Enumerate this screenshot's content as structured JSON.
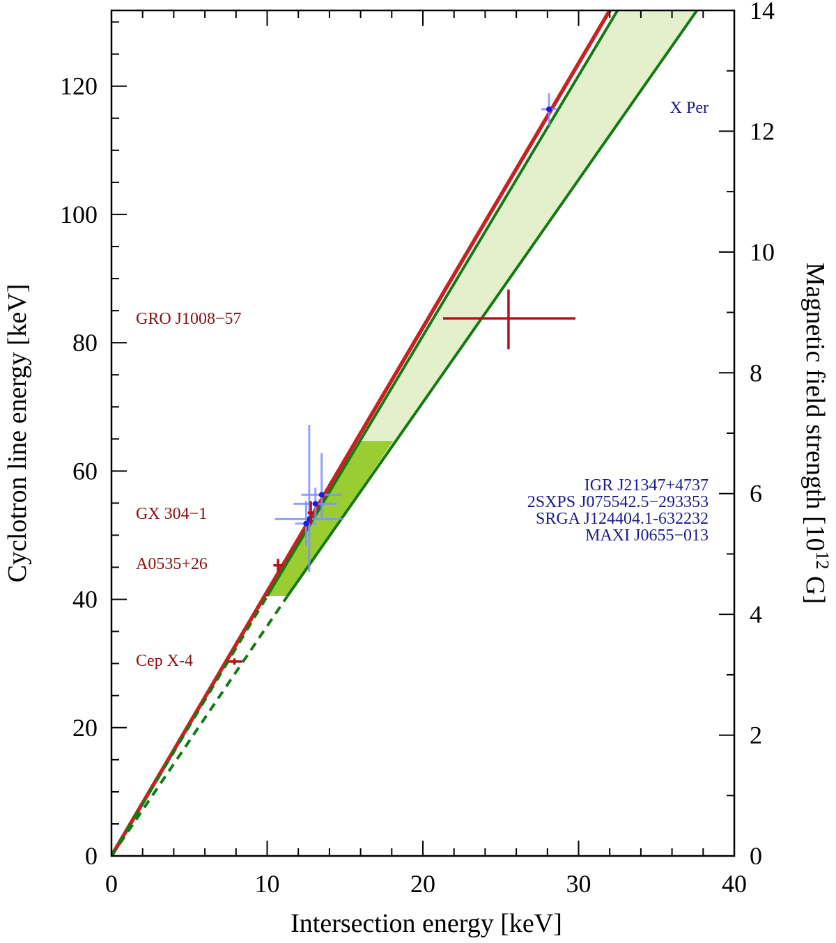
{
  "colors": {
    "red_line": "#cc1f1f",
    "red_points": "#b01414",
    "dark_green": "#127a12",
    "light_green_fill": "#e4f0cc",
    "mid_green_fill": "#9acd32",
    "blue_points": "#1a1adb",
    "blue_errorbars": "#7f8fff",
    "red_label": "#8b1010",
    "blue_label": "#1a1a8c"
  },
  "chart_data": {
    "type": "scatter",
    "xlabel": "Intersection energy [keV]",
    "ylabel": "Cyclotron line energy [keV]",
    "y2label": "Magnetic field strength [10",
    "y2label_sup": "12",
    "y2label_end": " G]",
    "xlim": [
      0,
      40
    ],
    "ylim": [
      0,
      131.8
    ],
    "y2lim": [
      0,
      14
    ],
    "xticks": [
      0,
      10,
      20,
      30,
      40
    ],
    "xtick_labels": [
      "0",
      "10",
      "20",
      "30",
      "40"
    ],
    "yticks": [
      0,
      20,
      40,
      60,
      80,
      100,
      120
    ],
    "ytick_labels": [
      "0",
      "20",
      "40",
      "60",
      "80",
      "100",
      "120"
    ],
    "y2ticks": [
      0,
      2,
      4,
      6,
      8,
      10,
      12,
      14
    ],
    "y2tick_labels": [
      "0",
      "2",
      "4",
      "6",
      "8",
      "10",
      "12",
      "14"
    ],
    "lines": [
      {
        "x": [
          0,
          32
        ],
        "y": [
          0,
          131.8
        ],
        "style": "red-solid"
      },
      {
        "x": [
          10,
          32.5
        ],
        "y": [
          40.5,
          131.8
        ],
        "style": "green-solid"
      },
      {
        "x": [
          11.3,
          37.6
        ],
        "y": [
          40.5,
          131.8
        ],
        "style": "green-solid"
      },
      {
        "x": [
          0,
          10
        ],
        "y": [
          0,
          40.5
        ],
        "style": "green-dashed"
      },
      {
        "x": [
          0,
          11.3
        ],
        "y": [
          0,
          40.5
        ],
        "style": "green-dashed"
      }
    ],
    "band_light": {
      "x": [
        10,
        32.5,
        37.6,
        11.3
      ],
      "y": [
        40.5,
        131.8,
        131.8,
        40.5
      ]
    },
    "band_mid": {
      "x": [
        10,
        16.0,
        18.1,
        11.3
      ],
      "y": [
        40.5,
        64.7,
        64.7,
        40.5
      ]
    },
    "red_points": [
      {
        "name": "GRO J1008−57",
        "x": 25.5,
        "y": 83.8,
        "xerr": [
          4.2,
          4.3
        ],
        "yerr": [
          4.8,
          4.5
        ],
        "label": "GRO J1008−57"
      },
      {
        "name": "GX 304−1",
        "x": 12.8,
        "y": 53.5,
        "xerr": [
          0.2,
          0.2
        ],
        "yerr": [
          1.8,
          1.8
        ],
        "label": "GX 304−1"
      },
      {
        "name": "A0535+26",
        "x": 10.7,
        "y": 45.3,
        "xerr": [
          0.3,
          0.3
        ],
        "yerr": [
          1.0,
          1.0
        ],
        "label": "A0535+26"
      },
      {
        "name": "Cep X-4",
        "x": 7.9,
        "y": 30.3,
        "xerr": [
          0.4,
          0.5
        ],
        "yerr": [
          0.5,
          0.5
        ],
        "label": "Cep X-4"
      }
    ],
    "blue_points": [
      {
        "name": "X Per",
        "x": 28.1,
        "y": 116.4,
        "xerr": [
          0.5,
          0.5
        ],
        "yerr": [
          2.5,
          2.5
        ]
      },
      {
        "name": "IGR J21347+4737",
        "x": 13.5,
        "y": 56.3,
        "xerr": [
          1.3,
          1.3
        ],
        "yerr": [
          3.5,
          6.5
        ]
      },
      {
        "name": "2SXPS J075542.5−293353",
        "x": 13.1,
        "y": 54.9,
        "xerr": [
          1.4,
          1.4
        ],
        "yerr": [
          2.5,
          2.5
        ]
      },
      {
        "name": "SRGA J124404.1-632232",
        "x": 12.7,
        "y": 52.5,
        "xerr": [
          2.2,
          2.2
        ],
        "yerr": [
          8.2,
          14.7
        ]
      },
      {
        "name": "MAXI J0655−013",
        "x": 12.5,
        "y": 51.8,
        "xerr": [
          0.7,
          0.7
        ],
        "yerr": [
          3.5,
          3.5
        ]
      }
    ],
    "blue_labels": [
      "X Per",
      "IGR J21347+4737",
      "2SXPS J075542.5−293353",
      "SRGA J124404.1-632232",
      "MAXI J0655−013"
    ]
  }
}
